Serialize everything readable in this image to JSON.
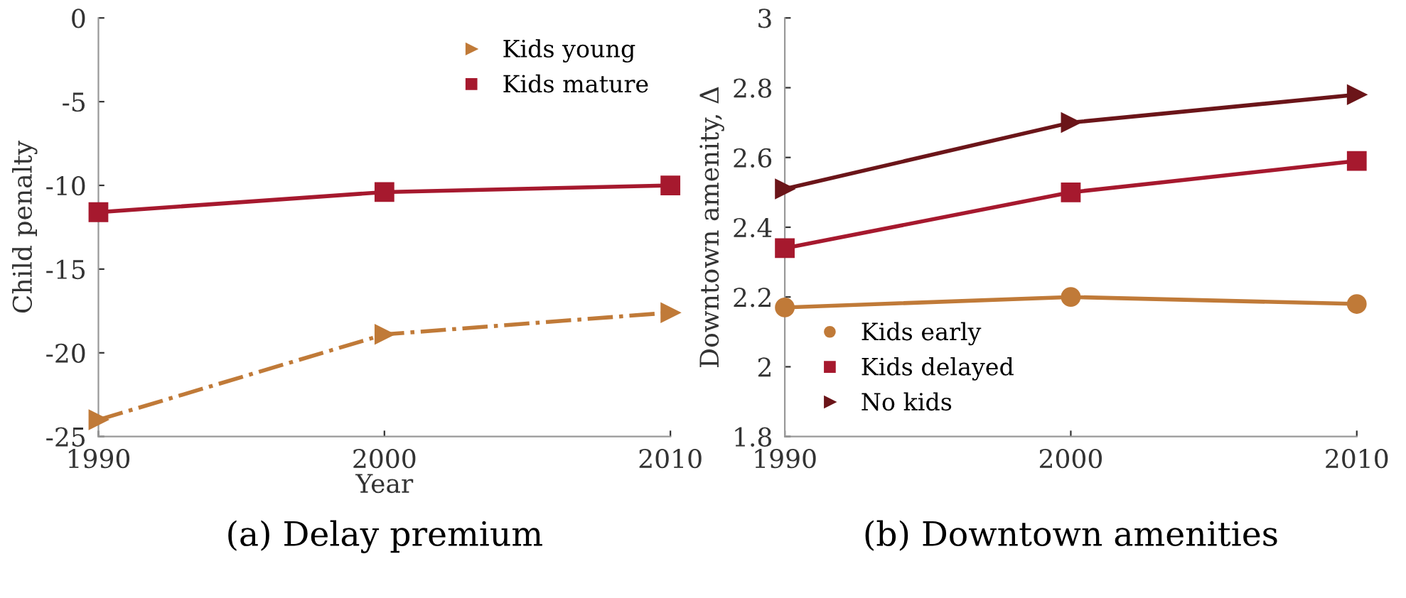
{
  "chart_data": [
    {
      "type": "line",
      "title": "(a) Delay premium",
      "xlabel": "Year",
      "ylabel": "Child penalty",
      "x": [
        1990,
        2000,
        2010
      ],
      "xlim": [
        1990,
        2010
      ],
      "xticks": [
        1990,
        2000,
        2010
      ],
      "ylim": [
        -25,
        0
      ],
      "yticks": [
        -25,
        -20,
        -15,
        -10,
        -5,
        0
      ],
      "grid": false,
      "legend": "top right",
      "series": [
        {
          "name": "Kids young",
          "color": "#c07a38",
          "marker": "triangle",
          "line_style": "dashdot",
          "values": [
            -24.0,
            -18.9,
            -17.6
          ]
        },
        {
          "name": "Kids mature",
          "color": "#a6192e",
          "marker": "square",
          "line_style": "solid",
          "values": [
            -11.6,
            -10.4,
            -10.0
          ]
        }
      ]
    },
    {
      "type": "line",
      "title": "(b) Downtown amenities",
      "ylabel": "Downtown amenity, Δ",
      "x": [
        1990,
        2000,
        2010
      ],
      "xlim": [
        1990,
        2010
      ],
      "xticks": [
        1990,
        2000,
        2010
      ],
      "ylim": [
        1.8,
        3
      ],
      "yticks": [
        1.8,
        2,
        2.2,
        2.4,
        2.6,
        2.8,
        3
      ],
      "grid": false,
      "legend": "bottom left",
      "series": [
        {
          "name": "Kids early",
          "color": "#c07a38",
          "marker": "circle",
          "line_style": "solid",
          "values": [
            2.17,
            2.2,
            2.18
          ]
        },
        {
          "name": "Kids delayed",
          "color": "#a6192e",
          "marker": "square",
          "line_style": "solid",
          "values": [
            2.34,
            2.5,
            2.59
          ]
        },
        {
          "name": "No kids",
          "color": "#6b1519",
          "marker": "triangle",
          "line_style": "solid",
          "values": [
            2.51,
            2.7,
            2.78
          ]
        }
      ]
    }
  ]
}
